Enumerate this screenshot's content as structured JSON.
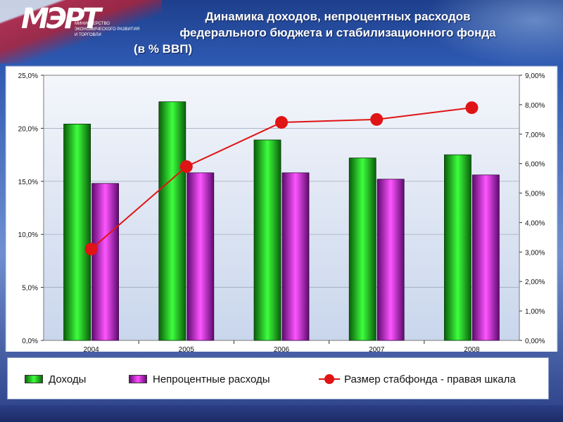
{
  "header": {
    "logo_mark": "МЭРТ",
    "logo_caption": "министерство экономического развития и торговли",
    "title_lines": [
      "Динамика доходов, непроцентных расходов",
      "федерального бюджета и стабилизационного фонда",
      "(в % ВВП)"
    ]
  },
  "colors": {
    "income": "#16c016",
    "expense": "#c21bd8",
    "fund_line": "#e01414"
  },
  "chart_data": {
    "type": "bar",
    "title": "Динамика доходов, непроцентных расходов федерального бюджета и стабилизационного фонда (в % ВВП)",
    "categories": [
      "2004",
      "2005",
      "2006",
      "2007",
      "2008"
    ],
    "y_left": {
      "min": 0,
      "max": 25,
      "step": 5,
      "tick_labels": [
        "0,0%",
        "5,0%",
        "10,0%",
        "15,0%",
        "20,0%",
        "25,0%"
      ]
    },
    "y_right": {
      "min": 0,
      "max": 9,
      "step": 1,
      "tick_labels": [
        "0,00%",
        "1,00%",
        "2,00%",
        "3,00%",
        "4,00%",
        "5,00%",
        "6,00%",
        "7,00%",
        "8,00%",
        "9,00%"
      ]
    },
    "grid": "horizontal",
    "legend_position": "bottom",
    "series": [
      {
        "name": "Доходы",
        "type": "bar",
        "axis": "left",
        "values": [
          20.4,
          22.5,
          18.9,
          17.2,
          17.5
        ]
      },
      {
        "name": "Непроцентные расходы",
        "type": "bar",
        "axis": "left",
        "values": [
          14.8,
          15.8,
          15.8,
          15.2,
          15.6
        ]
      },
      {
        "name": "Размер стабфонда - правая шкала",
        "type": "line",
        "axis": "right",
        "values": [
          3.1,
          5.9,
          7.4,
          7.5,
          7.9
        ]
      }
    ]
  }
}
